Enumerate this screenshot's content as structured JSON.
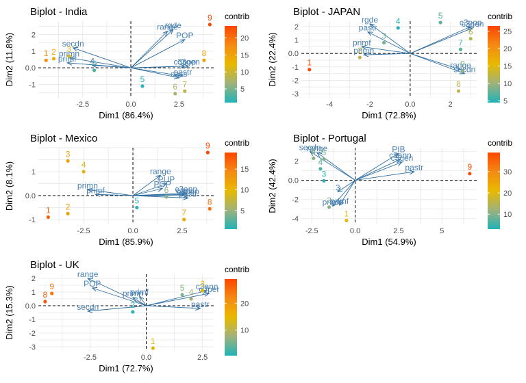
{
  "colors": {
    "arrow": "#2f6ea0",
    "label": "#4a82b4",
    "grid": "#ebebeb",
    "gradient": [
      "#21b2b8",
      "#9fb27a",
      "#e8b900",
      "#f48a14",
      "#fb4600"
    ]
  },
  "chart_data": [
    {
      "type": "scatter",
      "subtype": "biplot",
      "title": "Biplot - India",
      "xlabel": "Dim1 (86.4%)",
      "ylabel": "Dim2 (11.8%)",
      "xlim": [
        -4.8,
        4.3
      ],
      "ylim": [
        -1.8,
        2.8
      ],
      "xticks": [
        -2.5,
        0.0,
        2.5
      ],
      "yticks": [
        -1,
        0,
        1,
        2
      ],
      "legend": {
        "title": "contrib",
        "min": 1,
        "max": 23.5,
        "ticks": [
          5,
          10,
          15,
          20
        ]
      },
      "points": [
        {
          "label": "1",
          "x": -4.4,
          "y": 0.45,
          "contrib": 17
        },
        {
          "label": "2",
          "x": -4.0,
          "y": 0.55,
          "contrib": 14
        },
        {
          "label": "3",
          "x": -3.2,
          "y": 0.7,
          "contrib": 11
        },
        {
          "label": "4",
          "x": -1.9,
          "y": -0.15,
          "contrib": 3
        },
        {
          "label": "5",
          "x": 0.6,
          "y": -1.1,
          "contrib": 1
        },
        {
          "label": "6",
          "x": 2.3,
          "y": -1.55,
          "contrib": 7
        },
        {
          "label": "7",
          "x": 2.8,
          "y": -1.4,
          "contrib": 9
        },
        {
          "label": "8",
          "x": 3.8,
          "y": 0.45,
          "contrib": 15
        },
        {
          "label": "9",
          "x": 4.1,
          "y": 2.6,
          "contrib": 23
        }
      ],
      "variables": [
        {
          "label": "range",
          "x": 1.9,
          "y": 2.2
        },
        {
          "label": "rgde",
          "x": 2.2,
          "y": 2.3
        },
        {
          "label": "POP",
          "x": 2.8,
          "y": 1.7
        },
        {
          "label": "secdn",
          "x": -3.0,
          "y": 1.2
        },
        {
          "label": "primn",
          "x": -3.2,
          "y": 0.6
        },
        {
          "label": "primf",
          "x": -3.3,
          "y": 0.3
        },
        {
          "label": "4",
          "x": -2.0,
          "y": 0.15
        },
        {
          "label": "c3pop",
          "x": 2.8,
          "y": 0.1
        },
        {
          "label": "c3gen",
          "x": 3.0,
          "y": 0.1
        },
        {
          "label": "pastr",
          "x": 2.7,
          "y": -0.5
        },
        {
          "label": "cass",
          "x": 2.5,
          "y": -0.6
        }
      ]
    },
    {
      "type": "scatter",
      "subtype": "biplot",
      "title": "Biplot - JAPAN",
      "xlabel": "Dim1 (72.8%)",
      "ylabel": "Dim2 (22.4%)",
      "xlim": [
        -5.4,
        3.3
      ],
      "ylim": [
        -3.3,
        2.4
      ],
      "xticks": [
        -4,
        -2,
        0,
        2
      ],
      "yticks": [
        -3,
        -2,
        -1,
        0,
        1,
        2
      ],
      "legend": {
        "title": "contrib",
        "min": 4.5,
        "max": 26.5,
        "ticks": [
          5,
          10,
          15,
          20,
          25
        ]
      },
      "points": [
        {
          "label": "1",
          "x": -5.0,
          "y": -1.2,
          "contrib": 26
        },
        {
          "label": "2",
          "x": -2.5,
          "y": -0.3,
          "contrib": 12
        },
        {
          "label": "3",
          "x": -1.3,
          "y": 0.8,
          "contrib": 8
        },
        {
          "label": "4",
          "x": -0.6,
          "y": 1.9,
          "contrib": 4.5
        },
        {
          "label": "5",
          "x": 1.5,
          "y": 2.3,
          "contrib": 7
        },
        {
          "label": "6",
          "x": 3.0,
          "y": 1.1,
          "contrib": 12
        },
        {
          "label": "7",
          "x": 2.5,
          "y": 0.3,
          "contrib": 7
        },
        {
          "label": "8",
          "x": 2.4,
          "y": -2.8,
          "contrib": 12
        },
        {
          "label": "9",
          "x": 2.6,
          "y": -1.3,
          "contrib": 9
        }
      ],
      "variables": [
        {
          "label": "rgde",
          "x": -2.0,
          "y": 2.2
        },
        {
          "label": "pastr",
          "x": -2.1,
          "y": 1.6
        },
        {
          "label": "primf",
          "x": -2.4,
          "y": 0.5
        },
        {
          "label": "primn",
          "x": -2.3,
          "y": -0.1
        },
        {
          "label": "c3pop",
          "x": 3.0,
          "y": 2.0
        },
        {
          "label": "c3gen",
          "x": 3.1,
          "y": 1.9
        },
        {
          "label": "range",
          "x": 2.5,
          "y": -1.2
        },
        {
          "label": "secdn",
          "x": 2.7,
          "y": -1.5
        }
      ]
    },
    {
      "type": "scatter",
      "subtype": "biplot",
      "title": "Biplot - Mexico",
      "xlabel": "Dim1 (85.9%)",
      "ylabel": "Dim2 (8.1%)",
      "xlim": [
        -4.8,
        4.1
      ],
      "ylim": [
        -1.2,
        2.0
      ],
      "xticks": [
        -2.5,
        0.0,
        2.5
      ],
      "yticks": [
        -1,
        0,
        1
      ],
      "legend": {
        "title": "contrib",
        "min": 0.5,
        "max": 19,
        "ticks": [
          5,
          10,
          15
        ]
      },
      "points": [
        {
          "label": "1",
          "x": -4.3,
          "y": -0.9,
          "contrib": 17
        },
        {
          "label": "2",
          "x": -3.3,
          "y": -0.75,
          "contrib": 12
        },
        {
          "label": "3",
          "x": -3.3,
          "y": 1.45,
          "contrib": 12
        },
        {
          "label": "4",
          "x": -2.5,
          "y": 1.0,
          "contrib": 9
        },
        {
          "label": "5",
          "x": 0.2,
          "y": -0.5,
          "contrib": 1
        },
        {
          "label": "6",
          "x": 1.7,
          "y": -0.05,
          "contrib": 4
        },
        {
          "label": "7",
          "x": 2.6,
          "y": -1.0,
          "contrib": 11
        },
        {
          "label": "8",
          "x": 3.9,
          "y": -0.55,
          "contrib": 16
        },
        {
          "label": "9",
          "x": 3.8,
          "y": 1.8,
          "contrib": 19
        }
      ],
      "variables": [
        {
          "label": "range",
          "x": 1.4,
          "y": 0.85
        },
        {
          "label": "PUP",
          "x": 1.7,
          "y": 0.5
        },
        {
          "label": "POP",
          "x": 1.5,
          "y": 0.3
        },
        {
          "label": "primn",
          "x": -2.3,
          "y": 0.25
        },
        {
          "label": "primf",
          "x": -1.9,
          "y": 0.05
        },
        {
          "label": "c3ann",
          "x": 2.7,
          "y": 0.1
        },
        {
          "label": "c3pop",
          "x": 2.8,
          "y": 0.0
        },
        {
          "label": "pastr",
          "x": 2.8,
          "y": -0.1
        },
        {
          "label": "cass",
          "x": 2.6,
          "y": 0.05
        }
      ]
    },
    {
      "type": "scatter",
      "subtype": "biplot",
      "title": "Biplot - Portugal",
      "xlabel": "Dim1 (54.9%)",
      "ylabel": "Dim2 (42.4%)",
      "xlim": [
        -3.1,
        7.0
      ],
      "ylim": [
        -4.6,
        3.4
      ],
      "xticks": [
        -2.5,
        0.0,
        2.5,
        5.0
      ],
      "yticks": [
        -4,
        -2,
        0,
        2
      ],
      "legend": {
        "title": "contrib",
        "min": 3,
        "max": 39,
        "ticks": [
          10,
          20,
          30
        ]
      },
      "points": [
        {
          "label": "1",
          "x": -0.5,
          "y": -4.2,
          "contrib": 20
        },
        {
          "label": "2",
          "x": -1.5,
          "y": -2.8,
          "contrib": 10
        },
        {
          "label": "3",
          "x": -1.8,
          "y": -0.05,
          "contrib": 4
        },
        {
          "label": "4",
          "x": -2.0,
          "y": 1.2,
          "contrib": 6
        },
        {
          "label": "5",
          "x": -1.8,
          "y": 2.2,
          "contrib": 10
        },
        {
          "label": "6",
          "x": -2.4,
          "y": 2.3,
          "contrib": 10
        },
        {
          "label": "9",
          "x": 6.6,
          "y": 0.7,
          "contrib": 38
        }
      ],
      "variables": [
        {
          "label": "PIB",
          "x": 2.5,
          "y": 2.8
        },
        {
          "label": "c3ann",
          "x": 2.6,
          "y": 2.2
        },
        {
          "label": "c3gen",
          "x": 2.7,
          "y": 1.9
        },
        {
          "label": "pastr",
          "x": 3.4,
          "y": 0.9
        },
        {
          "label": "primn",
          "x": -1.3,
          "y": -2.7
        },
        {
          "label": "primf",
          "x": -0.9,
          "y": -2.6
        },
        {
          "label": "3",
          "x": -1.0,
          "y": -1.2
        },
        {
          "label": "secdn",
          "x": -2.6,
          "y": 3.0
        },
        {
          "label": "range",
          "x": -2.2,
          "y": 2.9
        }
      ]
    },
    {
      "type": "scatter",
      "subtype": "biplot",
      "title": "Biplot - UK",
      "xlabel": "Dim1 (72.7%)",
      "ylabel": "Dim2 (15.3%)",
      "xlim": [
        -4.8,
        3.0
      ],
      "ylim": [
        -3.3,
        2.3
      ],
      "xticks": [
        -2.5,
        0.0,
        2.5
      ],
      "yticks": [
        -3,
        -2,
        -1,
        0,
        1,
        2
      ],
      "legend": {
        "title": "contrib",
        "min": 0.5,
        "max": 29,
        "ticks": [
          10,
          20
        ]
      },
      "points": [
        {
          "label": "1",
          "x": 0.3,
          "y": -3.1,
          "contrib": 14
        },
        {
          "label": "2",
          "x": -0.6,
          "y": -0.45,
          "contrib": 1
        },
        {
          "label": "3",
          "x": 2.5,
          "y": 1.1,
          "contrib": 14
        },
        {
          "label": "4",
          "x": 2.0,
          "y": 0.5,
          "contrib": 8
        },
        {
          "label": "5",
          "x": 1.6,
          "y": 0.8,
          "contrib": 6
        },
        {
          "label": "8",
          "x": -4.5,
          "y": 0.3,
          "contrib": 27
        },
        {
          "label": "9",
          "x": -4.2,
          "y": 0.9,
          "contrib": 24
        }
      ],
      "variables": [
        {
          "label": "range",
          "x": -2.6,
          "y": 2.0
        },
        {
          "label": "POP",
          "x": -2.4,
          "y": 1.3
        },
        {
          "label": "secdn",
          "x": -2.6,
          "y": -0.4
        },
        {
          "label": "primn",
          "x": -0.6,
          "y": 0.6
        },
        {
          "label": "primf",
          "x": -0.3,
          "y": 0.7
        },
        {
          "label": "c3ann",
          "x": 2.7,
          "y": 1.1
        },
        {
          "label": "c3per",
          "x": 2.8,
          "y": 0.9
        },
        {
          "label": "pastr",
          "x": 2.4,
          "y": -0.2
        }
      ]
    }
  ]
}
